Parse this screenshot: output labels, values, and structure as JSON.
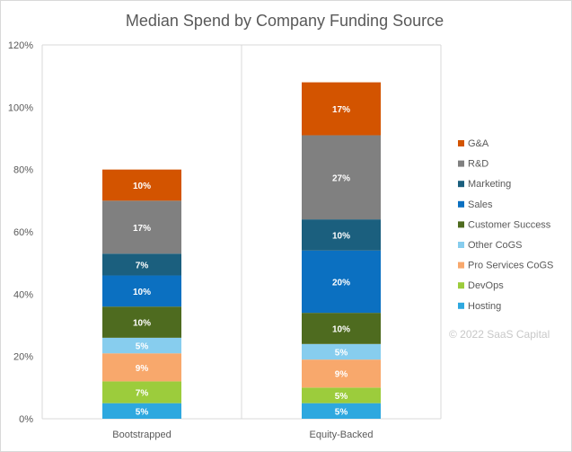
{
  "chart_data": {
    "type": "bar",
    "stacked": true,
    "title": "Median Spend by Company Funding Source",
    "categories": [
      "Bootstrapped",
      "Equity-Backed"
    ],
    "ylim": [
      0,
      120
    ],
    "yticks": [
      "0%",
      "20%",
      "40%",
      "60%",
      "80%",
      "100%",
      "120%"
    ],
    "legend_position": "right",
    "series": [
      {
        "name": "Hosting",
        "values": [
          5,
          5
        ],
        "labels": [
          "5%",
          "5%"
        ],
        "color": "#2ea8df",
        "label_color": "#ffffff"
      },
      {
        "name": "DevOps",
        "values": [
          7,
          5
        ],
        "labels": [
          "7%",
          "5%"
        ],
        "color": "#9ccc3c",
        "label_color": "#ffffff"
      },
      {
        "name": "Pro Services CoGS",
        "values": [
          9,
          9
        ],
        "labels": [
          "9%",
          "9%"
        ],
        "color": "#f8a86c",
        "label_color": "#ffffff"
      },
      {
        "name": "Other CoGS",
        "values": [
          5,
          5
        ],
        "labels": [
          "5%",
          "5%"
        ],
        "color": "#87cdee",
        "label_color": "#ffffff"
      },
      {
        "name": "Customer Success",
        "values": [
          10,
          10
        ],
        "labels": [
          "10%",
          "10%"
        ],
        "color": "#4e6b1f",
        "label_color": "#ffffff"
      },
      {
        "name": "Sales",
        "values": [
          10,
          20
        ],
        "labels": [
          "10%",
          "20%"
        ],
        "color": "#0b70c1",
        "label_color": "#ffffff"
      },
      {
        "name": "Marketing",
        "values": [
          7,
          10
        ],
        "labels": [
          "7%",
          "10%"
        ],
        "color": "#1b5f7e",
        "label_color": "#ffffff"
      },
      {
        "name": "R&D",
        "values": [
          17,
          27
        ],
        "labels": [
          "17%",
          "27%"
        ],
        "color": "#808080",
        "label_color": "#ffffff"
      },
      {
        "name": "G&A",
        "values": [
          10,
          17
        ],
        "labels": [
          "10%",
          "17%"
        ],
        "color": "#d35400",
        "label_color": "#ffffff"
      }
    ],
    "legend_order": [
      "G&A",
      "R&D",
      "Marketing",
      "Sales",
      "Customer Success",
      "Other CoGS",
      "Pro Services CoGS",
      "DevOps",
      "Hosting"
    ],
    "grid": "vertical-category-separators",
    "watermark": "© 2022 SaaS Capital"
  }
}
